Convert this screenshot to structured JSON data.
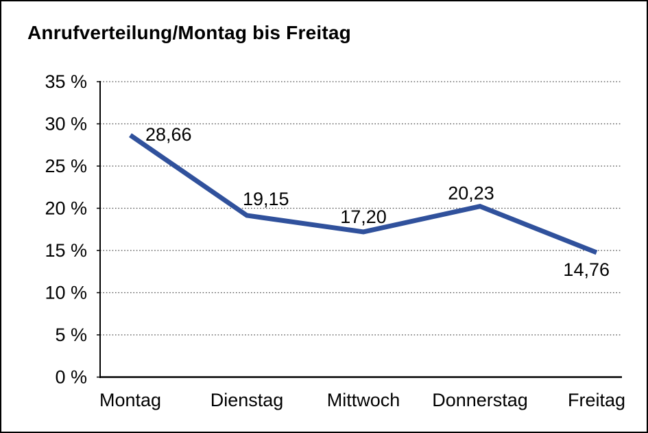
{
  "chart_data": {
    "type": "line",
    "title": "Anrufverteilung/Montag bis Freitag",
    "categories": [
      "Montag",
      "Dienstag",
      "Mittwoch",
      "Donnerstag",
      "Freitag"
    ],
    "series": [
      {
        "name": "Anrufverteilung",
        "values": [
          28.66,
          19.15,
          17.2,
          20.23,
          14.76
        ],
        "point_labels": [
          "28,66",
          "19,15",
          "17,20",
          "20,23",
          "14,76"
        ]
      }
    ],
    "xlabel": "",
    "ylabel": "",
    "ylim": [
      0,
      35
    ],
    "ytick_step": 5,
    "ytick_labels": [
      "0 %",
      "5 %",
      "10 %",
      "15 %",
      "20 %",
      "25 %",
      "30 %",
      "35 %"
    ],
    "grid": "horizontal-dotted",
    "legend": "none",
    "colors": {
      "line": "#30519c",
      "axis": "#000000",
      "grid": "#4a4a4a",
      "text": "#000000",
      "background": "#ffffff",
      "frame_border": "#000000"
    }
  }
}
